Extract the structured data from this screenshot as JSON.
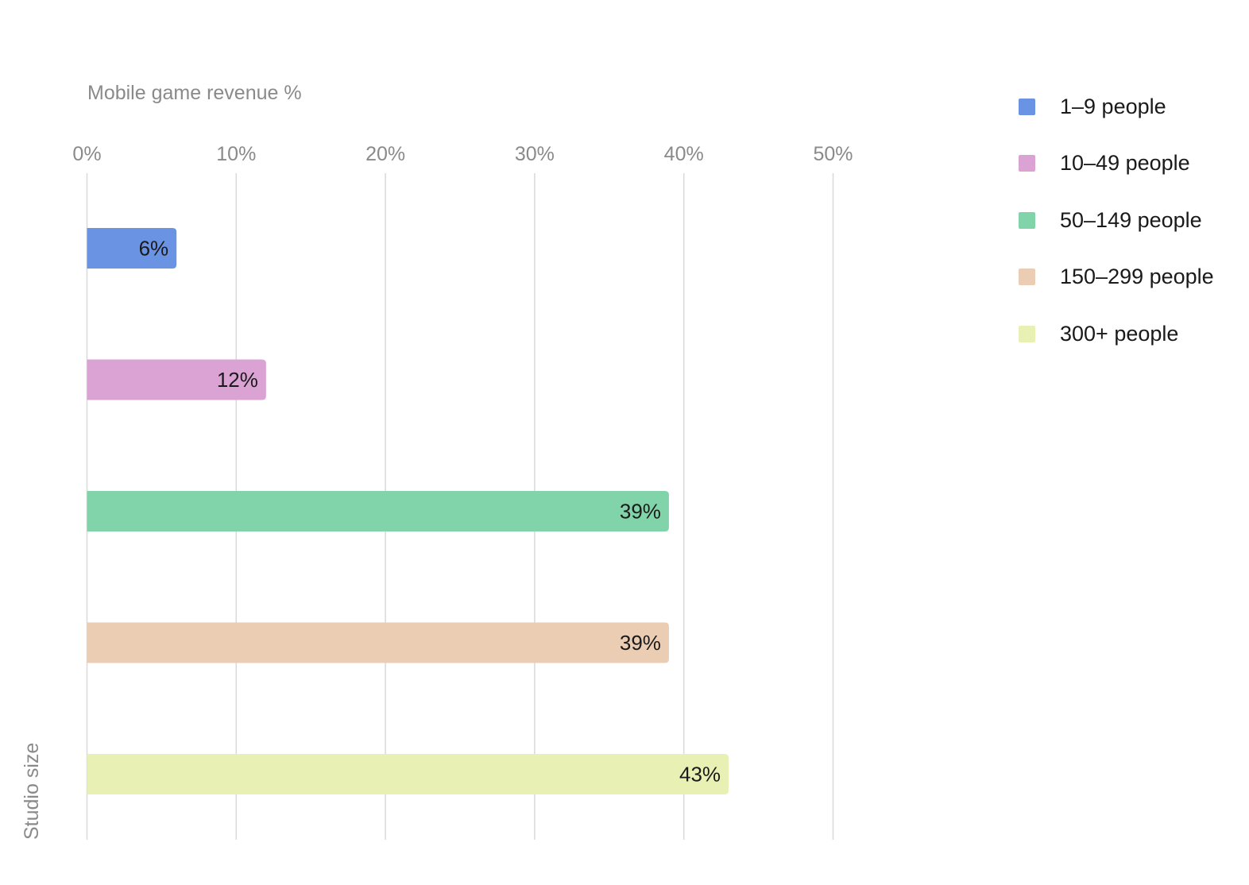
{
  "chart_data": {
    "type": "bar",
    "orientation": "horizontal",
    "title": "",
    "xlabel": "Mobile game revenue %",
    "ylabel": "Studio size",
    "xlim": [
      0,
      50
    ],
    "x_ticks": [
      "0%",
      "10%",
      "20%",
      "30%",
      "40%",
      "50%"
    ],
    "grid": true,
    "legend_position": "top-right",
    "categories": [
      "1–9 people",
      "10–49 people",
      "50–149 people",
      "150–299 people",
      "300+ people"
    ],
    "values": [
      6,
      12,
      39,
      39,
      43
    ],
    "data_labels": [
      "6%",
      "12%",
      "39%",
      "39%",
      "43%"
    ],
    "colors": [
      "#6a93e3",
      "#dba3d4",
      "#81d3a9",
      "#ebcdb4",
      "#e8f0b4"
    ]
  },
  "legend": [
    {
      "label": "1–9 people",
      "color": "#6a93e3"
    },
    {
      "label": "10–49 people",
      "color": "#dba3d4"
    },
    {
      "label": "50–149 people",
      "color": "#81d3a9"
    },
    {
      "label": "150–299 people",
      "color": "#ebcdb4"
    },
    {
      "label": "300+ people",
      "color": "#e8f0b4"
    }
  ]
}
